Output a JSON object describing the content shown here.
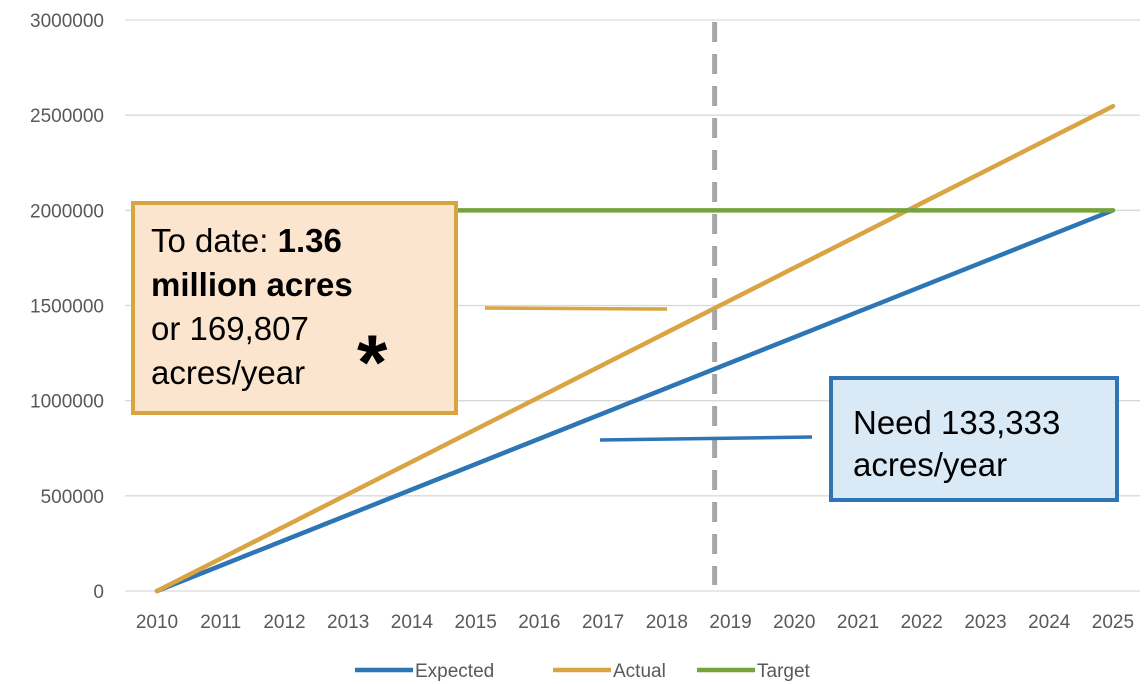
{
  "chart_data": {
    "type": "line",
    "x": [
      2010,
      2011,
      2012,
      2013,
      2014,
      2015,
      2016,
      2017,
      2018,
      2019,
      2020,
      2021,
      2022,
      2023,
      2024,
      2025
    ],
    "categories": [
      "2010",
      "2011",
      "2012",
      "2013",
      "2014",
      "2015",
      "2016",
      "2017",
      "2018",
      "2019",
      "2020",
      "2021",
      "2022",
      "2023",
      "2024",
      "2025"
    ],
    "series": [
      {
        "name": "Expected",
        "color": "#2e75b6",
        "values": [
          0,
          133333,
          266667,
          400000,
          533333,
          666667,
          800000,
          933333,
          1066667,
          1200000,
          1333333,
          1466667,
          1600000,
          1733333,
          1866667,
          2000000
        ]
      },
      {
        "name": "Actual",
        "color": "#d9a441",
        "values": [
          0,
          169807,
          339614,
          509421,
          679228,
          849035,
          1018842,
          1188649,
          1358456,
          1528263,
          1698070,
          1867877,
          2037684,
          2207491,
          2377298,
          2547105
        ]
      },
      {
        "name": "Target",
        "color": "#77a33d",
        "values": [
          2000000,
          2000000,
          2000000,
          2000000,
          2000000,
          2000000,
          2000000,
          2000000,
          2000000,
          2000000,
          2000000,
          2000000,
          2000000,
          2000000,
          2000000,
          2000000
        ]
      }
    ],
    "y_ticks": [
      "0",
      "500000",
      "1000000",
      "1500000",
      "2000000",
      "2500000",
      "3000000"
    ],
    "ylim": [
      0,
      3000000
    ],
    "grid": true,
    "legend_position": "bottom",
    "marker_line_x": 2018.75,
    "marker_line_color": "#a6a6a6",
    "annotations": {
      "todate_prefix": "To date: ",
      "todate_bold": "1.36 million acres",
      "todate_suffix": " or 169,807 acres/year",
      "todate_star": "*",
      "todate_color": "#d9a441",
      "need_text": "Need 133,333 acres/year",
      "need_color": "#2e75b6"
    }
  }
}
